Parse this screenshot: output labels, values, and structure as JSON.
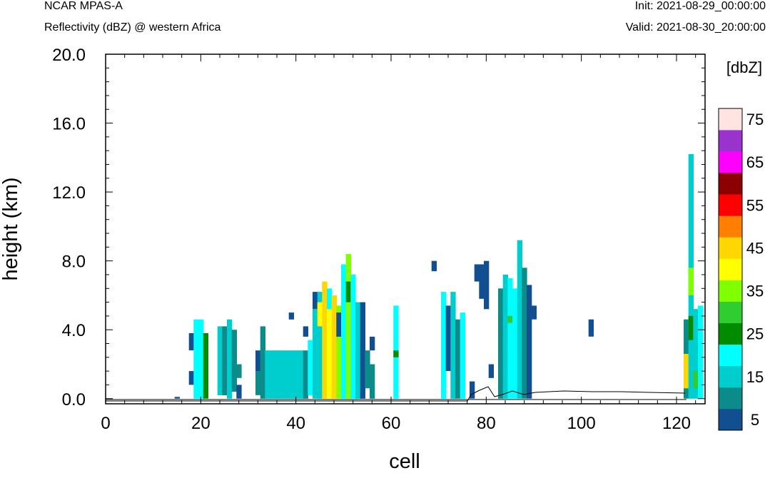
{
  "header": {
    "model": "NCAR MPAS-A",
    "field": "Reflectivity (dBZ) @ western Africa",
    "init": "Init: 2021-08-29_00:00:00",
    "valid": "Valid: 2021-08-30_20:00:00"
  },
  "colorbar": {
    "unit_label": "[dbZ]",
    "levels": [
      5,
      10,
      15,
      20,
      25,
      30,
      35,
      40,
      45,
      50,
      55,
      60,
      65,
      70,
      75
    ],
    "colors": [
      "#124f91",
      "#0c8b8b",
      "#00cdcd",
      "#00ffff",
      "#008b00",
      "#30cd30",
      "#80ff00",
      "#ffff00",
      "#ffd700",
      "#ff8000",
      "#ff0000",
      "#8b0000",
      "#ff00ff",
      "#9a32cd",
      "#ffe4e1"
    ],
    "tick_labels": [
      "5",
      "15",
      "25",
      "35",
      "45",
      "55",
      "65",
      "75"
    ]
  },
  "chart_data": {
    "type": "heatmap",
    "xlabel": "cell",
    "ylabel": "height (km)",
    "xlim": [
      0,
      126
    ],
    "ylim": [
      -0.3,
      20
    ],
    "x_ticks": [
      "0",
      "20",
      "40",
      "60",
      "80",
      "100",
      "120"
    ],
    "y_ticks": [
      "0.0",
      "4.0",
      "8.0",
      "12.0",
      "16.0",
      "20.0"
    ],
    "cells": [
      [
        15,
        0,
        0.1,
        5
      ],
      [
        18,
        2.8,
        3.8,
        5
      ],
      [
        18,
        0.8,
        1.6,
        5
      ],
      [
        19,
        0,
        4.6,
        20
      ],
      [
        20,
        0,
        4.6,
        20
      ],
      [
        21,
        0,
        3.8,
        25
      ],
      [
        24,
        0.2,
        4.2,
        15
      ],
      [
        25,
        0.2,
        4.2,
        10
      ],
      [
        26,
        0,
        4.6,
        15
      ],
      [
        27,
        0.4,
        4.0,
        10
      ],
      [
        28,
        0,
        0.8,
        5
      ],
      [
        28,
        1.2,
        2.0,
        10
      ],
      [
        32,
        0.2,
        1.6,
        10
      ],
      [
        32,
        1.6,
        2.8,
        5
      ],
      [
        33,
        0,
        4.2,
        10
      ],
      [
        34,
        0,
        2.8,
        15
      ],
      [
        35,
        0,
        2.8,
        15
      ],
      [
        36,
        0,
        2.8,
        15
      ],
      [
        37,
        0,
        2.8,
        15
      ],
      [
        38,
        0,
        2.8,
        15
      ],
      [
        39,
        0,
        2.8,
        15
      ],
      [
        40,
        0,
        2.8,
        15
      ],
      [
        41,
        0,
        2.8,
        15
      ],
      [
        39,
        4.6,
        5.0,
        5
      ],
      [
        42,
        3.6,
        4.2,
        5
      ],
      [
        42,
        0,
        2.8,
        10
      ],
      [
        43,
        0.2,
        3.4,
        20
      ],
      [
        44,
        0,
        5.2,
        15
      ],
      [
        44,
        5.2,
        6.2,
        5
      ],
      [
        45,
        0,
        6.2,
        15
      ],
      [
        45,
        4.2,
        5.6,
        40
      ],
      [
        46,
        0,
        6.8,
        45
      ],
      [
        47,
        0,
        5.2,
        40
      ],
      [
        47,
        5.2,
        6.4,
        20
      ],
      [
        48,
        0,
        6.0,
        45
      ],
      [
        49,
        0,
        5.4,
        35
      ],
      [
        49,
        3.6,
        5.0,
        5
      ],
      [
        50,
        0,
        7.8,
        20
      ],
      [
        51,
        0,
        8.4,
        35
      ],
      [
        51,
        5.6,
        6.8,
        25
      ],
      [
        52,
        0,
        7.2,
        20
      ],
      [
        53,
        0,
        5.6,
        15
      ],
      [
        54,
        0,
        5.6,
        5
      ],
      [
        55,
        0.6,
        2.8,
        10
      ],
      [
        56,
        0,
        2.0,
        10
      ],
      [
        56,
        2.8,
        3.6,
        5
      ],
      [
        61,
        0,
        5.4,
        20
      ],
      [
        61,
        2.4,
        2.8,
        25
      ],
      [
        69,
        7.4,
        8.0,
        5
      ],
      [
        71,
        0,
        6.2,
        20
      ],
      [
        72,
        1.6,
        5.4,
        5
      ],
      [
        73,
        0,
        6.2,
        15
      ],
      [
        74,
        0,
        4.6,
        10
      ],
      [
        75,
        0,
        5.0,
        20
      ],
      [
        77,
        0,
        1.0,
        5
      ],
      [
        78,
        6.8,
        7.8,
        5
      ],
      [
        79,
        5.8,
        7.8,
        5
      ],
      [
        80,
        5.2,
        8.0,
        5
      ],
      [
        81,
        1.2,
        2.0,
        5
      ],
      [
        83,
        0,
        6.4,
        10
      ],
      [
        84,
        0,
        7.2,
        15
      ],
      [
        85,
        0,
        7.0,
        20
      ],
      [
        85,
        4.4,
        4.8,
        30
      ],
      [
        86,
        0,
        6.4,
        20
      ],
      [
        87,
        0,
        9.2,
        15
      ],
      [
        88,
        0,
        7.6,
        10
      ],
      [
        89,
        0,
        6.6,
        5
      ],
      [
        90,
        4.6,
        5.4,
        5
      ],
      [
        102,
        3.6,
        4.6,
        5
      ],
      [
        122,
        0,
        4.6,
        10
      ],
      [
        122,
        0.6,
        2.6,
        45
      ],
      [
        123,
        0,
        14.2,
        15
      ],
      [
        123,
        6.0,
        7.6,
        35
      ],
      [
        123,
        3.4,
        4.8,
        25
      ],
      [
        124,
        0,
        5.2,
        15
      ],
      [
        124,
        0.6,
        1.6,
        30
      ],
      [
        125,
        0,
        5.4,
        20
      ]
    ]
  }
}
